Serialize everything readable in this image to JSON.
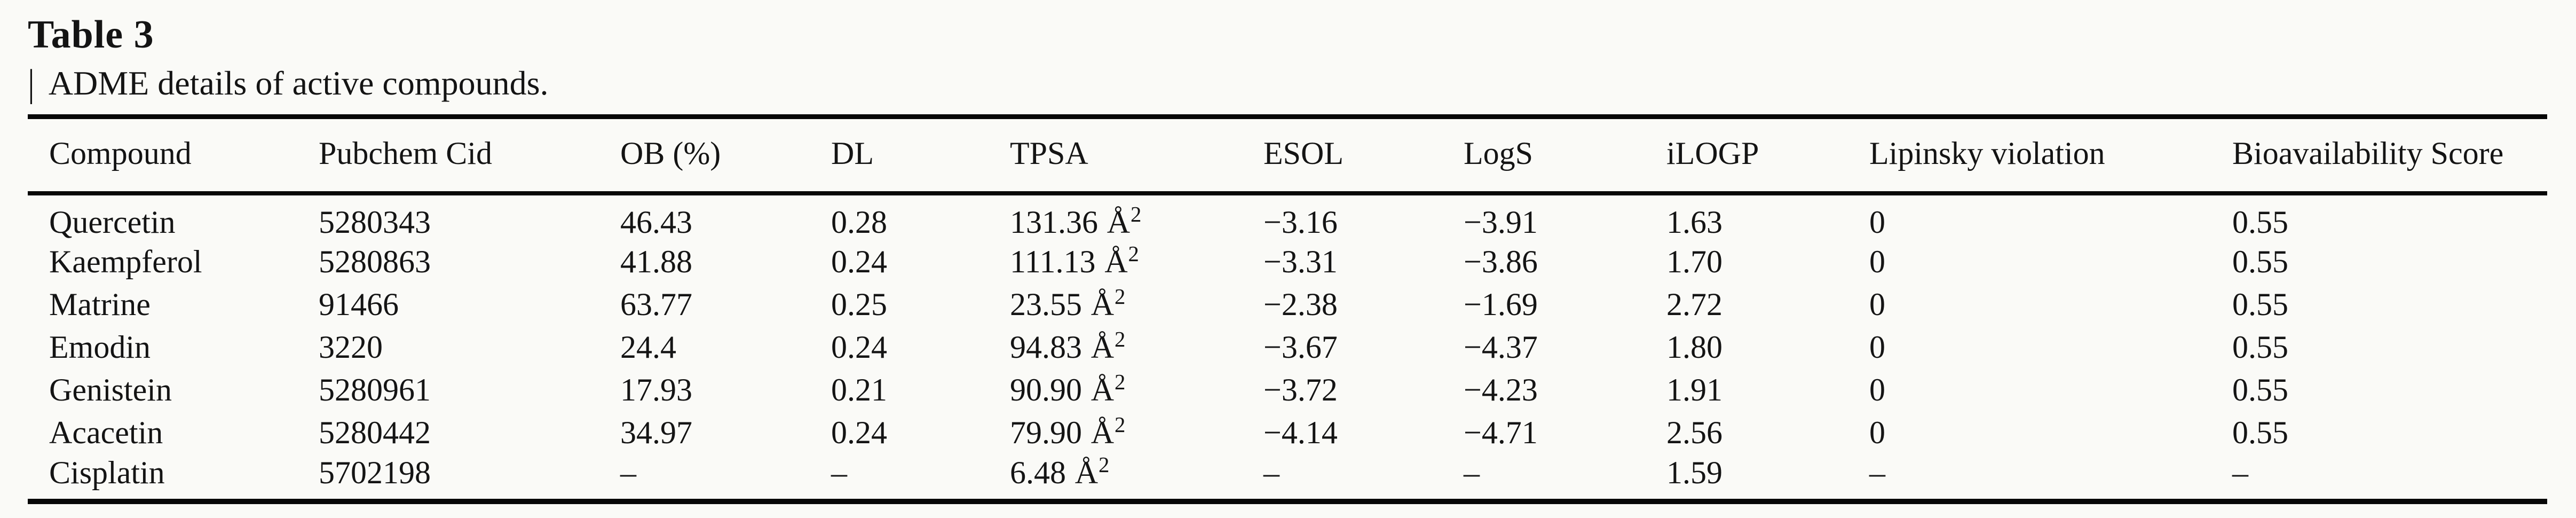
{
  "caption": {
    "title": "Table 3",
    "bar": "|",
    "subtitle": "ADME details of active compounds."
  },
  "colors": {
    "background": "#fafaf7",
    "text": "#141414",
    "rule": "#070707"
  },
  "table": {
    "headers": [
      "Compound",
      "Pubchem Cid",
      "OB (%)",
      "DL",
      "TPSA",
      "ESOL",
      "LogS",
      "iLOGP",
      "Lipinsky violation",
      "Bioavailability Score"
    ],
    "tpsa_unit": "Å",
    "tpsa_exponent": "2",
    "rows": [
      {
        "compound": "Quercetin",
        "pubchem_cid": "5280343",
        "ob_percent": "46.43",
        "dl": "0.28",
        "tpsa": "131.36",
        "esol": "−3.16",
        "logs": "−3.91",
        "ilogp": "1.63",
        "lipinsky_violation": "0",
        "bioavailability_score": "0.55"
      },
      {
        "compound": "Kaempferol",
        "pubchem_cid": "5280863",
        "ob_percent": "41.88",
        "dl": "0.24",
        "tpsa": "111.13",
        "esol": "−3.31",
        "logs": "−3.86",
        "ilogp": "1.70",
        "lipinsky_violation": "0",
        "bioavailability_score": "0.55"
      },
      {
        "compound": "Matrine",
        "pubchem_cid": "91466",
        "ob_percent": "63.77",
        "dl": "0.25",
        "tpsa": "23.55",
        "esol": "−2.38",
        "logs": "−1.69",
        "ilogp": "2.72",
        "lipinsky_violation": "0",
        "bioavailability_score": "0.55"
      },
      {
        "compound": "Emodin",
        "pubchem_cid": "3220",
        "ob_percent": "24.4",
        "dl": "0.24",
        "tpsa": "94.83",
        "esol": "−3.67",
        "logs": "−4.37",
        "ilogp": "1.80",
        "lipinsky_violation": "0",
        "bioavailability_score": "0.55"
      },
      {
        "compound": "Genistein",
        "pubchem_cid": "5280961",
        "ob_percent": "17.93",
        "dl": "0.21",
        "tpsa": "90.90",
        "esol": "−3.72",
        "logs": "−4.23",
        "ilogp": "1.91",
        "lipinsky_violation": "0",
        "bioavailability_score": "0.55"
      },
      {
        "compound": "Acacetin",
        "pubchem_cid": "5280442",
        "ob_percent": "34.97",
        "dl": "0.24",
        "tpsa": "79.90",
        "esol": "−4.14",
        "logs": "−4.71",
        "ilogp": "2.56",
        "lipinsky_violation": "0",
        "bioavailability_score": "0.55"
      },
      {
        "compound": "Cisplatin",
        "pubchem_cid": "5702198",
        "ob_percent": "–",
        "dl": "–",
        "tpsa": "6.48",
        "esol": "–",
        "logs": "–",
        "ilogp": "1.59",
        "lipinsky_violation": "–",
        "bioavailability_score": "–"
      }
    ]
  }
}
